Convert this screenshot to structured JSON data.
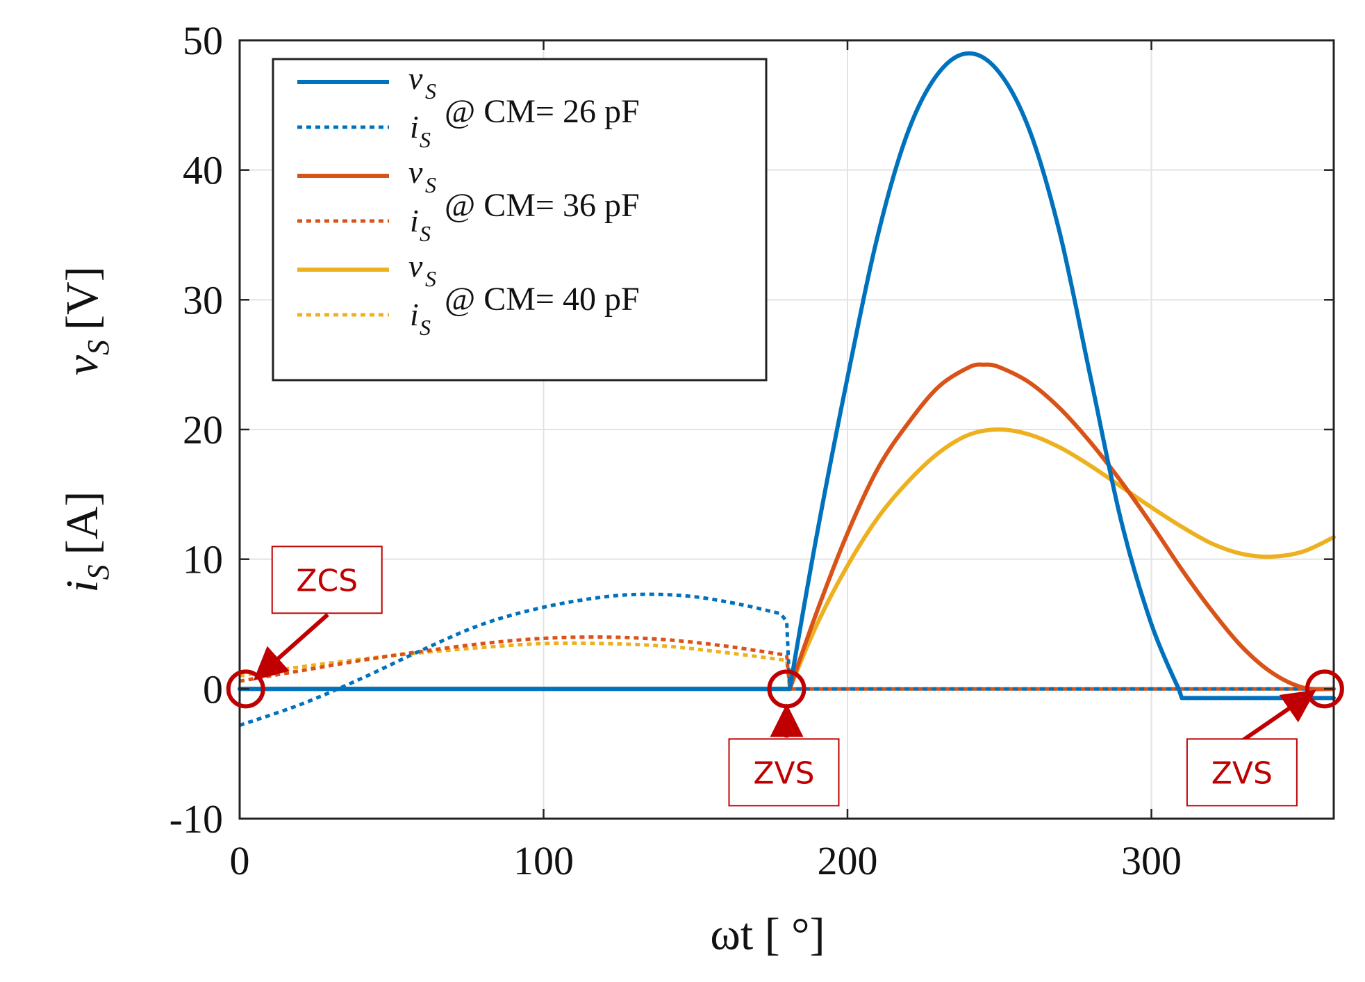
{
  "chart_data": {
    "type": "line",
    "xlabel": "ωt [ °]",
    "ylabel": {
      "upper_symbol": "v",
      "upper_sub": "S",
      "upper_unit": "[V]",
      "lower_symbol": "i",
      "lower_sub": "S",
      "lower_unit": "[A]"
    },
    "xlim": [
      0,
      360
    ],
    "ylim": [
      -10,
      50
    ],
    "xticks": [
      0,
      100,
      200,
      300
    ],
    "yticks": [
      -10,
      0,
      10,
      20,
      30,
      40,
      50
    ],
    "xtick_labels": [
      "0",
      "100",
      "200",
      "300"
    ],
    "ytick_labels": [
      "-10",
      "0",
      "10",
      "20",
      "30",
      "40",
      "50"
    ],
    "grid": true,
    "legend_position": "top-left",
    "legend": [
      {
        "v_symbol": "v",
        "v_sub": "S",
        "i_symbol": "i",
        "i_sub": "S",
        "label": "@ CM= 26 pF",
        "color": "#0072BD"
      },
      {
        "v_symbol": "v",
        "v_sub": "S",
        "i_symbol": "i",
        "i_sub": "S",
        "label": "@ CM= 36 pF",
        "color": "#D95319"
      },
      {
        "v_symbol": "v",
        "v_sub": "S",
        "i_symbol": "i",
        "i_sub": "S",
        "label": "@ CM= 40 pF",
        "color": "#EDB120"
      }
    ],
    "series": [
      {
        "kind": "voltage",
        "style": "solid",
        "color": "#0072BD",
        "x": [
          0,
          180,
          181,
          190,
          200,
          210,
          220,
          230,
          240,
          250,
          260,
          270,
          280,
          290,
          300,
          309,
          310,
          360
        ],
        "y": [
          0,
          0,
          0,
          12,
          24,
          35,
          43,
          47.5,
          49,
          47.5,
          43,
          35,
          24,
          13,
          5,
          0,
          -0.7,
          -0.7
        ]
      },
      {
        "kind": "current",
        "style": "dotted",
        "color": "#0072BD",
        "x": [
          0,
          20,
          40,
          60,
          80,
          100,
          120,
          135,
          150,
          165,
          178,
          180,
          181,
          360
        ],
        "y": [
          -2.8,
          -1.2,
          0.8,
          3,
          5,
          6.3,
          7.1,
          7.3,
          7.1,
          6.5,
          5.8,
          5.2,
          0,
          0
        ]
      },
      {
        "kind": "voltage",
        "style": "solid",
        "color": "#D95319",
        "x": [
          0,
          180,
          181,
          190,
          200,
          210,
          220,
          230,
          240,
          245,
          250,
          260,
          270,
          280,
          290,
          300,
          310,
          320,
          330,
          340,
          350,
          360
        ],
        "y": [
          0,
          0,
          0,
          6,
          12,
          17,
          20.5,
          23.3,
          24.8,
          25,
          24.8,
          23.6,
          21.6,
          19,
          16,
          12.7,
          9.2,
          6,
          3.2,
          1.2,
          0.1,
          0
        ]
      },
      {
        "kind": "current",
        "style": "dotted",
        "color": "#D95319",
        "x": [
          0,
          20,
          40,
          60,
          80,
          100,
          120,
          140,
          160,
          180,
          181,
          360
        ],
        "y": [
          0.6,
          1.4,
          2.2,
          2.9,
          3.5,
          3.9,
          4,
          3.8,
          3.3,
          2.6,
          0,
          0
        ]
      },
      {
        "kind": "voltage",
        "style": "solid",
        "color": "#EDB120",
        "x": [
          0,
          180,
          181,
          190,
          200,
          210,
          220,
          230,
          240,
          250,
          260,
          270,
          280,
          290,
          300,
          310,
          320,
          330,
          340,
          350,
          360
        ],
        "y": [
          0,
          0,
          0,
          5,
          9.5,
          13.2,
          16,
          18.2,
          19.6,
          20,
          19.6,
          18.6,
          17.2,
          15.6,
          14,
          12.5,
          11.2,
          10.4,
          10.2,
          10.6,
          11.7
        ]
      },
      {
        "kind": "current",
        "style": "dotted",
        "color": "#EDB120",
        "x": [
          0,
          20,
          40,
          60,
          80,
          100,
          120,
          140,
          160,
          180,
          181,
          360
        ],
        "y": [
          1,
          1.7,
          2.3,
          2.8,
          3.2,
          3.5,
          3.5,
          3.3,
          2.8,
          2.2,
          0,
          0
        ]
      }
    ],
    "annotations": [
      {
        "text": "ZCS",
        "x": 2,
        "y": 0,
        "label_position": "above-right"
      },
      {
        "text": "ZVS",
        "x": 180,
        "y": 0,
        "label_position": "below"
      },
      {
        "text": "ZVS",
        "x": 357,
        "y": 0,
        "label_position": "below-left"
      }
    ],
    "annotation_color": "#c00000"
  }
}
